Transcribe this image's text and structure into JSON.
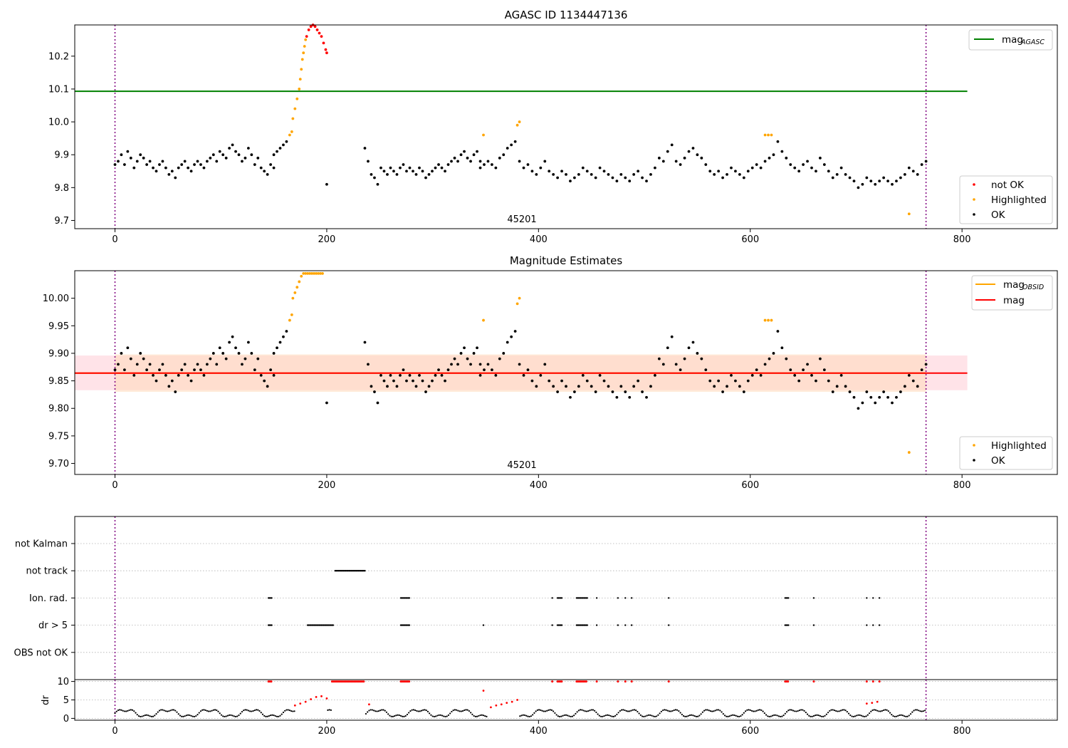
{
  "chart_data": [
    {
      "id": "top",
      "type": "scatter",
      "title": "AGASC ID 1134447136",
      "xlabel": "",
      "ylabel": "",
      "xlim": [
        -38,
        890
      ],
      "ylim": [
        9.675,
        10.295
      ],
      "xticks": [
        0,
        200,
        400,
        600,
        800
      ],
      "yticks": [
        9.7,
        9.8,
        9.9,
        10.0,
        10.1,
        10.2
      ],
      "ytick_labels": [
        "9.7",
        "9.8",
        "9.9",
        "10.0",
        "10.1",
        "10.2"
      ],
      "hlines": [
        {
          "name": "mag_AGASC",
          "y": 10.093,
          "x_range": [
            -38,
            805
          ],
          "color": "#008000"
        }
      ],
      "vlines": [
        0,
        766
      ],
      "annotations": [
        {
          "text": "45201",
          "x": 384,
          "y": 9.7
        }
      ],
      "legends": [
        {
          "position": "top-right",
          "entries": [
            {
              "label": "mag",
              "sub": "AGASC",
              "marker": "line",
              "color": "#008000"
            }
          ]
        },
        {
          "position": "bottom-right",
          "entries": [
            {
              "label": "not OK",
              "marker": "dot",
              "color": "#ff0000"
            },
            {
              "label": "Highlighted",
              "marker": "dot",
              "color": "#ffa500"
            },
            {
              "label": "OK",
              "marker": "dot",
              "color": "#000000"
            }
          ]
        }
      ],
      "series": [
        {
          "name": "not OK",
          "color": "#ff0000",
          "x": [
            181,
            183,
            185,
            187,
            189,
            191,
            193,
            195,
            197,
            199,
            200
          ],
          "y": [
            10.26,
            10.28,
            10.29,
            10.295,
            10.29,
            10.28,
            10.27,
            10.26,
            10.24,
            10.22,
            10.21
          ]
        },
        {
          "name": "Highlighted",
          "color": "#ffa500",
          "x": [
            165,
            167,
            168,
            170,
            172,
            174,
            175,
            176,
            177,
            178,
            179,
            180,
            348,
            380,
            382,
            614,
            617,
            620,
            750
          ],
          "y": [
            9.96,
            9.97,
            10.01,
            10.04,
            10.07,
            10.1,
            10.13,
            10.16,
            10.19,
            10.21,
            10.23,
            10.25,
            9.96,
            9.99,
            10.0,
            9.96,
            9.96,
            9.96,
            9.72
          ]
        },
        {
          "name": "OK",
          "color": "#000000",
          "segments": [
            {
              "x_start": 0,
              "x_end": 150,
              "values": [
                9.87,
                9.88,
                9.9,
                9.87,
                9.91,
                9.89,
                9.86,
                9.88,
                9.9,
                9.89,
                9.87,
                9.88,
                9.86,
                9.85,
                9.87,
                9.88,
                9.86,
                9.84,
                9.85,
                9.83,
                9.86,
                9.87,
                9.88,
                9.86,
                9.85,
                9.87,
                9.88,
                9.87,
                9.86,
                9.88,
                9.89,
                9.9,
                9.88,
                9.91,
                9.9,
                9.89,
                9.92,
                9.93,
                9.91,
                9.9,
                9.88,
                9.89,
                9.92,
                9.9,
                9.87,
                9.89,
                9.86,
                9.85,
                9.84,
                9.87,
                9.86
              ]
            },
            {
              "x_start": 150,
              "x_end": 162,
              "values": [
                9.9,
                9.91,
                9.92,
                9.93,
                9.94
              ]
            },
            {
              "x_start": 200,
              "x_end": 200,
              "values": [
                9.81
              ]
            },
            {
              "x_start": 236,
              "x_end": 345,
              "values": [
                9.92,
                9.88,
                9.84,
                9.83,
                9.81,
                9.86,
                9.85,
                9.84,
                9.86,
                9.85,
                9.84,
                9.86,
                9.87,
                9.85,
                9.86,
                9.85,
                9.84,
                9.86,
                9.85,
                9.83,
                9.84,
                9.85,
                9.86,
                9.87,
                9.86,
                9.85,
                9.87,
                9.88,
                9.89,
                9.88,
                9.9,
                9.91,
                9.89,
                9.88,
                9.9,
                9.91,
                9.86
              ]
            },
            {
              "x_start": 345,
              "x_end": 378,
              "values": [
                9.88,
                9.87,
                9.88,
                9.87,
                9.86,
                9.89,
                9.9,
                9.92,
                9.93,
                9.94
              ]
            },
            {
              "x_start": 382,
              "x_end": 766,
              "values": [
                9.88,
                9.86,
                9.87,
                9.85,
                9.84,
                9.86,
                9.88,
                9.85,
                9.84,
                9.83,
                9.85,
                9.84,
                9.82,
                9.83,
                9.84,
                9.86,
                9.85,
                9.84,
                9.83,
                9.86,
                9.85,
                9.84,
                9.83,
                9.82,
                9.84,
                9.83,
                9.82,
                9.84,
                9.85,
                9.83,
                9.82,
                9.84,
                9.86,
                9.89,
                9.88,
                9.91,
                9.93,
                9.88,
                9.87,
                9.89,
                9.91,
                9.92,
                9.9,
                9.89,
                9.87,
                9.85,
                9.84,
                9.85,
                9.83,
                9.84,
                9.86,
                9.85,
                9.84,
                9.83,
                9.85,
                9.86,
                9.87,
                9.86,
                9.88,
                9.89,
                9.9,
                9.94,
                9.91,
                9.89,
                9.87,
                9.86,
                9.85,
                9.87,
                9.88,
                9.86,
                9.85,
                9.89,
                9.87,
                9.85,
                9.83,
                9.84,
                9.86,
                9.84,
                9.83,
                9.82,
                9.8,
                9.81,
                9.83,
                9.82,
                9.81,
                9.82,
                9.83,
                9.82,
                9.81,
                9.82,
                9.83,
                9.84,
                9.86,
                9.85,
                9.84,
                9.87,
                9.88
              ]
            }
          ]
        }
      ]
    },
    {
      "id": "mid",
      "type": "scatter",
      "title": "Magnitude Estimates",
      "xlabel": "",
      "ylabel": "",
      "xlim": [
        -38,
        890
      ],
      "ylim": [
        9.68,
        10.05
      ],
      "xticks": [
        0,
        200,
        400,
        600,
        800
      ],
      "yticks": [
        9.7,
        9.75,
        9.8,
        9.85,
        9.9,
        9.95,
        10.0
      ],
      "ytick_labels": [
        "9.70",
        "9.75",
        "9.80",
        "9.85",
        "9.90",
        "9.95",
        "10.00"
      ],
      "hlines": [
        {
          "name": "mag_OBSID",
          "y": 9.864,
          "x_range": [
            -38,
            766
          ],
          "color": "#ffa500"
        },
        {
          "name": "mag",
          "y": 9.864,
          "x_range": [
            -38,
            805
          ],
          "color": "#ff0000"
        }
      ],
      "bands": [
        {
          "name": "mag",
          "y0": 9.833,
          "y1": 9.896,
          "x_range": [
            -38,
            805
          ],
          "color": "#ffc0cb"
        },
        {
          "name": "mag_OBSID",
          "y0": 9.83,
          "y1": 9.898,
          "x_range": [
            0,
            766
          ],
          "color": "#ffdab9"
        }
      ],
      "vlines": [
        0,
        766
      ],
      "annotations": [
        {
          "text": "45201",
          "x": 384,
          "y": 9.7
        }
      ],
      "legends": [
        {
          "position": "top-right",
          "entries": [
            {
              "label": "mag",
              "sub": "OBSID",
              "marker": "line",
              "color": "#ffa500"
            },
            {
              "label": "mag",
              "marker": "line",
              "color": "#ff0000"
            }
          ]
        },
        {
          "position": "bottom-right",
          "entries": [
            {
              "label": "Highlighted",
              "marker": "dot",
              "color": "#ffa500"
            },
            {
              "label": "OK",
              "marker": "dot",
              "color": "#000000"
            }
          ]
        }
      ],
      "series": [
        {
          "name": "Highlighted",
          "color": "#ffa500",
          "x": [
            165,
            167,
            168,
            170,
            172,
            174,
            176,
            178,
            180,
            182,
            184,
            186,
            188,
            190,
            192,
            194,
            196,
            348,
            380,
            382,
            614,
            617,
            620,
            750
          ],
          "y": [
            9.96,
            9.97,
            10.0,
            10.01,
            10.02,
            10.03,
            10.04,
            10.045,
            10.045,
            10.045,
            10.045,
            10.045,
            10.045,
            10.045,
            10.045,
            10.045,
            10.045,
            9.96,
            9.99,
            10.0,
            9.96,
            9.96,
            9.96,
            9.72
          ]
        }
      ]
    },
    {
      "id": "flags",
      "type": "scatter",
      "title": "",
      "xlabel": "",
      "ylabel": "",
      "xlim": [
        -38,
        890
      ],
      "categories": [
        "not Kalman",
        "not track",
        "Ion. rad.",
        "dr > 5",
        "OBS not OK"
      ],
      "vlines": [
        0,
        766
      ],
      "markers": {
        "not track": [
          [
            208,
            236
          ]
        ],
        "Ion. rad.": [
          [
            145,
            148
          ],
          [
            270,
            278
          ],
          [
            413,
            413
          ],
          [
            418,
            422
          ],
          [
            436,
            446
          ],
          [
            455,
            455
          ],
          [
            475,
            475
          ],
          [
            482,
            482
          ],
          [
            488,
            488
          ],
          [
            523,
            523
          ],
          [
            633,
            636
          ],
          [
            660,
            660
          ],
          [
            710,
            710
          ],
          [
            716,
            716
          ],
          [
            722,
            722
          ]
        ],
        "dr > 5": [
          [
            145,
            148
          ],
          [
            182,
            206
          ],
          [
            270,
            278
          ],
          [
            348,
            348
          ],
          [
            413,
            413
          ],
          [
            418,
            422
          ],
          [
            436,
            446
          ],
          [
            455,
            455
          ],
          [
            475,
            475
          ],
          [
            482,
            482
          ],
          [
            488,
            488
          ],
          [
            523,
            523
          ],
          [
            633,
            636
          ],
          [
            660,
            660
          ],
          [
            710,
            710
          ],
          [
            716,
            716
          ],
          [
            722,
            722
          ]
        ]
      }
    },
    {
      "id": "dr",
      "type": "scatter",
      "title": "",
      "xlabel": "",
      "ylabel": "dr",
      "xlim": [
        -38,
        890
      ],
      "ylim": [
        -0.5,
        10.5
      ],
      "xticks": [
        0,
        200,
        400,
        600,
        800
      ],
      "yticks": [
        0,
        5,
        10
      ],
      "ytick_labels": [
        "0",
        "5",
        "10"
      ],
      "vlines": [
        0,
        766
      ],
      "series": [
        {
          "name": "dr > 5",
          "color": "#ff0000",
          "clipped_at": 10,
          "ranges": [
            [
              145,
              148
            ],
            [
              205,
              236
            ],
            [
              270,
              278
            ],
            [
              413,
              413
            ],
            [
              418,
              422
            ],
            [
              436,
              446
            ],
            [
              455,
              455
            ],
            [
              475,
              475
            ],
            [
              482,
              482
            ],
            [
              488,
              488
            ],
            [
              523,
              523
            ],
            [
              633,
              636
            ],
            [
              660,
              660
            ],
            [
              710,
              710
            ],
            [
              716,
              716
            ],
            [
              722,
              722
            ]
          ]
        },
        {
          "name": "dr rising",
          "color": "#ff0000",
          "x": [
            170,
            175,
            180,
            185,
            190,
            195,
            200,
            348,
            355,
            360,
            365,
            370,
            375,
            380,
            240,
            710,
            715,
            720
          ],
          "y": [
            3.5,
            4.0,
            4.5,
            5.2,
            5.8,
            6.0,
            5.4,
            7.5,
            3.0,
            3.5,
            3.8,
            4.2,
            4.5,
            5.0,
            3.8,
            4.0,
            4.2,
            4.5
          ]
        }
      ]
    }
  ]
}
